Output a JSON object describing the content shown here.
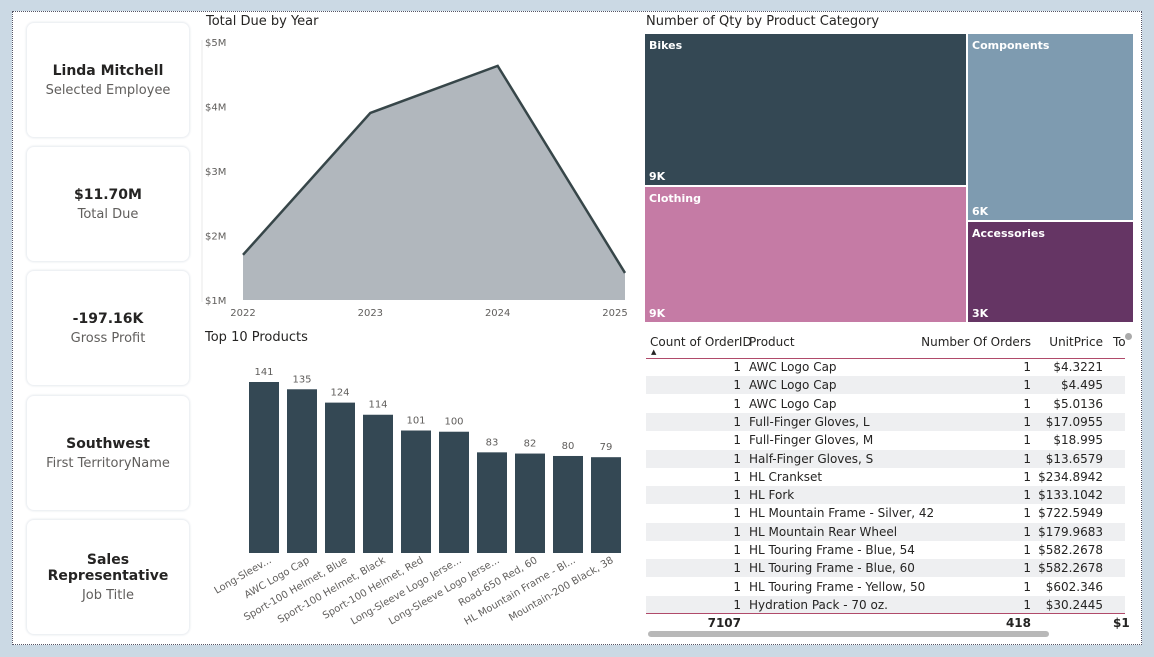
{
  "cards": [
    {
      "value": "Linda Mitchell",
      "label": "Selected Employee"
    },
    {
      "value": "$11.70M",
      "label": "Total Due"
    },
    {
      "value": "-197.16K",
      "label": "Gross Profit"
    },
    {
      "value": "Southwest",
      "label": "First TerritoryName"
    },
    {
      "value": "Sales Representative",
      "label": "Job Title"
    }
  ],
  "chart_data": [
    {
      "type": "area",
      "title": "Total Due by Year",
      "x": [
        "2022",
        "2023",
        "2024",
        "2025"
      ],
      "values": [
        1.7,
        3.9,
        4.63,
        1.42
      ],
      "yticks": [
        "$1M",
        "$2M",
        "$3M",
        "$4M",
        "$5M"
      ],
      "ylim": [
        1,
        5
      ],
      "unit": "M",
      "color": "#b1b7bd",
      "line_color": "#374649"
    },
    {
      "type": "bar",
      "title": "Top 10 Products",
      "categories": [
        "Long-Sleev...",
        "AWC Logo Cap",
        "Sport-100 Helmet, Blue",
        "Sport-100 Helmet, Black",
        "Sport-100 Helmet, Red",
        "Long-Sleeve Logo Jerse...",
        "Long-Sleeve Logo Jerse...",
        "Road-650 Red, 60",
        "HL Mountain Frame - Bl...",
        "Mountain-200 Black, 38"
      ],
      "values": [
        141,
        135,
        124,
        114,
        101,
        100,
        83,
        82,
        80,
        79
      ],
      "color": "#344854"
    },
    {
      "type": "treemap",
      "title": "Number of Qty by Product Category",
      "items": [
        {
          "name": "Bikes",
          "label": "9K",
          "color": "#344854"
        },
        {
          "name": "Clothing",
          "label": "9K",
          "color": "#c57ba5"
        },
        {
          "name": "Components",
          "label": "6K",
          "color": "#7e9bb0"
        },
        {
          "name": "Accessories",
          "label": "3K",
          "color": "#653564"
        }
      ]
    }
  ],
  "table": {
    "columns": [
      "Count of OrderID",
      "Product",
      "Number Of Orders",
      "UnitPrice",
      "To"
    ],
    "rows": [
      [
        "1",
        "AWC Logo Cap",
        "1",
        "$4.3221"
      ],
      [
        "1",
        "AWC Logo Cap",
        "1",
        "$4.495"
      ],
      [
        "1",
        "AWC Logo Cap",
        "1",
        "$5.0136"
      ],
      [
        "1",
        "Full-Finger Gloves, L",
        "1",
        "$17.0955"
      ],
      [
        "1",
        "Full-Finger Gloves, M",
        "1",
        "$18.995"
      ],
      [
        "1",
        "Half-Finger Gloves, S",
        "1",
        "$13.6579"
      ],
      [
        "1",
        "HL Crankset",
        "1",
        "$234.8942"
      ],
      [
        "1",
        "HL Fork",
        "1",
        "$133.1042"
      ],
      [
        "1",
        "HL Mountain Frame - Silver, 42",
        "1",
        "$722.5949"
      ],
      [
        "1",
        "HL Mountain Rear Wheel",
        "1",
        "$179.9683"
      ],
      [
        "1",
        "HL Touring Frame - Blue, 54",
        "1",
        "$582.2678"
      ],
      [
        "1",
        "HL Touring Frame - Blue, 60",
        "1",
        "$582.2678"
      ],
      [
        "1",
        "HL Touring Frame - Yellow, 50",
        "1",
        "$602.346"
      ],
      [
        "1",
        "Hydration Pack - 70 oz.",
        "1",
        "$30.2445"
      ]
    ],
    "totals": [
      "7107",
      "",
      "418",
      "",
      "$1"
    ]
  }
}
